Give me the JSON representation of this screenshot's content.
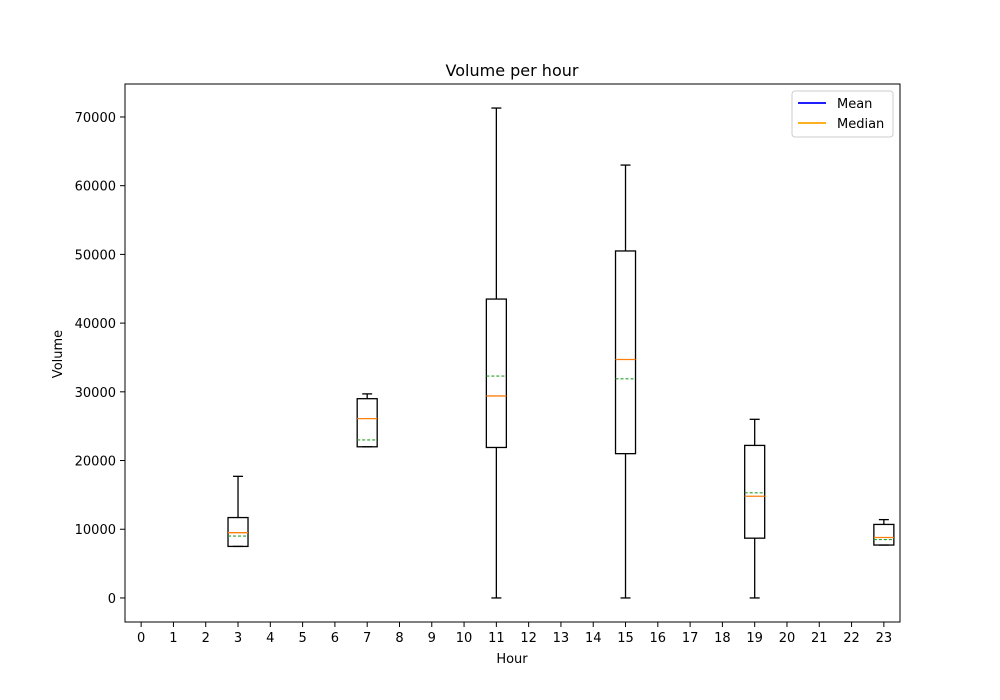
{
  "chart_data": {
    "type": "boxplot",
    "title": "Volume per hour",
    "xlabel": "Hour",
    "ylabel": "Volume",
    "x_ticks": [
      "0",
      "1",
      "2",
      "3",
      "4",
      "5",
      "6",
      "7",
      "8",
      "9",
      "10",
      "11",
      "12",
      "13",
      "14",
      "15",
      "16",
      "17",
      "18",
      "19",
      "20",
      "21",
      "22",
      "23"
    ],
    "y_ticks": [
      "0",
      "10000",
      "20000",
      "30000",
      "40000",
      "50000",
      "60000",
      "70000"
    ],
    "ylim": [
      -3500,
      74800
    ],
    "xlim": [
      -0.5,
      23.5
    ],
    "grid": false,
    "legend": {
      "placement": "top-right",
      "entries": [
        {
          "label": "Mean",
          "color": "#0000ff"
        },
        {
          "label": "Median",
          "color": "#ffa500"
        }
      ]
    },
    "colors": {
      "box": "#000000",
      "median": "#ff7f0e",
      "mean": "#2ca02c"
    },
    "boxes": [
      {
        "hour": 3,
        "whisker_low": 7500,
        "q1": 7500,
        "median": 9500,
        "mean": 9000,
        "q3": 11700,
        "whisker_high": 17700
      },
      {
        "hour": 7,
        "whisker_low": 22000,
        "q1": 22000,
        "median": 26100,
        "mean": 23000,
        "q3": 29000,
        "whisker_high": 29700
      },
      {
        "hour": 11,
        "whisker_low": 0,
        "q1": 21900,
        "median": 29400,
        "mean": 32300,
        "q3": 43500,
        "whisker_high": 71300
      },
      {
        "hour": 15,
        "whisker_low": 0,
        "q1": 21000,
        "median": 34700,
        "mean": 31900,
        "q3": 50500,
        "whisker_high": 63000
      },
      {
        "hour": 19,
        "whisker_low": 0,
        "q1": 8700,
        "median": 14800,
        "mean": 15300,
        "q3": 22200,
        "whisker_high": 26000
      },
      {
        "hour": 23,
        "whisker_low": 7700,
        "q1": 7700,
        "median": 8800,
        "mean": 8500,
        "q3": 10700,
        "whisker_high": 11400
      }
    ]
  }
}
